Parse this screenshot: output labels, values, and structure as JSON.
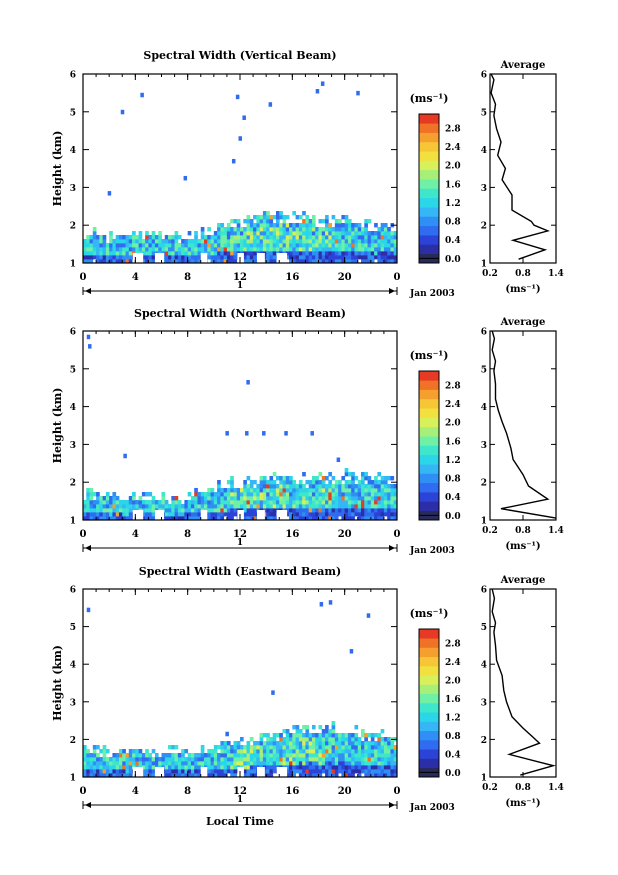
{
  "figure": {
    "date_label": "Jan 2003",
    "day_label": "1",
    "x_axis_title": "Local Time"
  },
  "colorbar": {
    "unit_label": "(ms⁻¹)",
    "ticks": [
      "2.8",
      "2.4",
      "2.0",
      "1.6",
      "1.2",
      "0.8",
      "0.4",
      "0.0"
    ],
    "colors": [
      "#282a5a",
      "#2c2ea8",
      "#2b43d6",
      "#2f6cf0",
      "#2f8ff5",
      "#35b7f5",
      "#2ad6e8",
      "#3ee6cc",
      "#6ef0a6",
      "#a6f07a",
      "#d8f05a",
      "#f2e040",
      "#f6c636",
      "#f5a02e",
      "#f07226",
      "#e63a24"
    ]
  },
  "chart_data": [
    {
      "type": "heatmap",
      "title": "Spectral Width (Vertical Beam)",
      "xlabel": "",
      "ylabel": "Height (km)",
      "xlim": [
        0,
        24
      ],
      "ylim": [
        1,
        6
      ],
      "xticks": [
        "0",
        "4",
        "8",
        "12",
        "16",
        "20",
        "0"
      ],
      "yticks": [
        "1",
        "2",
        "3",
        "4",
        "5",
        "6"
      ],
      "layer_top_km": [
        1.85,
        1.85,
        1.8,
        1.8,
        1.85,
        1.8,
        1.8,
        1.75,
        1.8,
        1.9,
        2.05,
        2.2,
        2.25,
        2.3,
        2.35,
        2.35,
        2.3,
        2.3,
        2.25,
        2.25,
        2.3,
        2.2,
        2.1,
        2.1,
        2.05
      ],
      "isolated_echoes": [
        [
          3.0,
          5.0
        ],
        [
          4.5,
          5.45
        ],
        [
          7.8,
          3.25
        ],
        [
          11.5,
          3.7
        ],
        [
          12.0,
          4.3
        ],
        [
          12.3,
          4.85
        ],
        [
          11.8,
          5.4
        ],
        [
          14.3,
          5.2
        ],
        [
          17.9,
          5.55
        ],
        [
          18.3,
          5.75
        ],
        [
          21.0,
          5.5
        ],
        [
          2.0,
          2.85
        ]
      ],
      "colorbar": [
        "0.0",
        "0.4",
        "0.8",
        "1.2",
        "1.6",
        "2.0",
        "2.4",
        "2.8"
      ],
      "average": {
        "title": "Average",
        "xlabel": "(ms⁻¹)",
        "xlim": [
          0.2,
          1.4
        ],
        "ylim": [
          1,
          6
        ],
        "xticks": [
          "0.2",
          "0.8",
          "1.4"
        ],
        "yticks": [
          "1",
          "2",
          "3",
          "4",
          "5",
          "6"
        ],
        "profile": [
          [
            0.72,
            1.1
          ],
          [
            1.2,
            1.35
          ],
          [
            0.62,
            1.6
          ],
          [
            1.25,
            1.85
          ],
          [
            1.0,
            2.0
          ],
          [
            0.95,
            2.1
          ],
          [
            0.6,
            2.4
          ],
          [
            0.6,
            2.8
          ],
          [
            0.42,
            3.2
          ],
          [
            0.48,
            3.5
          ],
          [
            0.34,
            3.85
          ],
          [
            0.4,
            4.2
          ],
          [
            0.32,
            4.55
          ],
          [
            0.27,
            4.9
          ],
          [
            0.3,
            5.2
          ],
          [
            0.22,
            5.5
          ],
          [
            0.27,
            5.85
          ],
          [
            0.22,
            6.0
          ]
        ]
      }
    },
    {
      "type": "heatmap",
      "title": "Spectral Width (Northward Beam)",
      "xlabel": "",
      "ylabel": "Height (km)",
      "xlim": [
        0,
        24
      ],
      "ylim": [
        1,
        6
      ],
      "xticks": [
        "0",
        "4",
        "8",
        "12",
        "16",
        "20",
        "0"
      ],
      "yticks": [
        "1",
        "2",
        "3",
        "4",
        "5",
        "6"
      ],
      "layer_top_km": [
        1.75,
        1.75,
        1.7,
        1.7,
        1.75,
        1.7,
        1.7,
        1.65,
        1.7,
        1.8,
        1.95,
        2.05,
        2.1,
        2.15,
        2.2,
        2.2,
        2.15,
        2.15,
        2.2,
        2.25,
        2.3,
        2.25,
        2.2,
        2.2,
        2.15
      ],
      "isolated_echoes": [
        [
          0.4,
          5.85
        ],
        [
          0.5,
          5.6
        ],
        [
          12.6,
          4.65
        ],
        [
          11.0,
          3.3
        ],
        [
          12.5,
          3.3
        ],
        [
          13.8,
          3.3
        ],
        [
          15.5,
          3.3
        ],
        [
          17.5,
          3.3
        ],
        [
          19.5,
          2.6
        ],
        [
          3.2,
          2.7
        ]
      ],
      "colorbar": [
        "0.0",
        "0.4",
        "0.8",
        "1.2",
        "1.6",
        "2.0",
        "2.4",
        "2.8"
      ],
      "average": {
        "title": "Average",
        "xlabel": "(ms⁻¹)",
        "xlim": [
          0.2,
          1.4
        ],
        "ylim": [
          1,
          6
        ],
        "xticks": [
          "0.2",
          "0.8",
          "1.4"
        ],
        "yticks": [
          "1",
          "2",
          "3",
          "4",
          "5",
          "6"
        ],
        "profile": [
          [
            1.4,
            1.05
          ],
          [
            0.4,
            1.3
          ],
          [
            1.25,
            1.55
          ],
          [
            0.9,
            1.9
          ],
          [
            0.8,
            2.2
          ],
          [
            0.62,
            2.6
          ],
          [
            0.58,
            2.9
          ],
          [
            0.5,
            3.3
          ],
          [
            0.42,
            3.6
          ],
          [
            0.35,
            3.9
          ],
          [
            0.3,
            4.2
          ],
          [
            0.3,
            4.6
          ],
          [
            0.27,
            4.95
          ],
          [
            0.3,
            5.2
          ],
          [
            0.24,
            5.5
          ],
          [
            0.28,
            5.8
          ],
          [
            0.24,
            6.0
          ]
        ]
      }
    },
    {
      "type": "heatmap",
      "title": "Spectral Width (Eastward Beam)",
      "xlabel": "Local Time",
      "ylabel": "Height (km)",
      "xlim": [
        0,
        24
      ],
      "ylim": [
        1,
        6
      ],
      "xticks": [
        "0",
        "4",
        "8",
        "12",
        "16",
        "20",
        "0"
      ],
      "yticks": [
        "1",
        "2",
        "3",
        "4",
        "5",
        "6"
      ],
      "layer_top_km": [
        1.8,
        1.8,
        1.75,
        1.75,
        1.75,
        1.75,
        1.8,
        1.8,
        1.75,
        1.8,
        1.85,
        1.9,
        2.0,
        2.1,
        2.2,
        2.3,
        2.35,
        2.4,
        2.45,
        2.5,
        2.4,
        2.3,
        2.2,
        2.2,
        2.1
      ],
      "isolated_echoes": [
        [
          0.4,
          5.45
        ],
        [
          14.5,
          3.25
        ],
        [
          18.2,
          5.6
        ],
        [
          18.9,
          5.65
        ],
        [
          20.5,
          4.35
        ],
        [
          21.8,
          5.3
        ],
        [
          11.0,
          2.15
        ]
      ],
      "colorbar": [
        "0.0",
        "0.4",
        "0.8",
        "1.2",
        "1.6",
        "2.0",
        "2.4",
        "2.8"
      ],
      "average": {
        "title": "Average",
        "xlabel": "(ms⁻¹)",
        "xlim": [
          0.2,
          1.4
        ],
        "ylim": [
          1,
          6
        ],
        "xticks": [
          "0.2",
          "0.8",
          "1.4"
        ],
        "yticks": [
          "1",
          "2",
          "3",
          "4",
          "5",
          "6"
        ],
        "profile": [
          [
            0.75,
            1.05
          ],
          [
            1.35,
            1.3
          ],
          [
            0.55,
            1.6
          ],
          [
            1.1,
            1.9
          ],
          [
            0.95,
            2.1
          ],
          [
            0.8,
            2.3
          ],
          [
            0.6,
            2.6
          ],
          [
            0.5,
            3.0
          ],
          [
            0.45,
            3.3
          ],
          [
            0.42,
            3.7
          ],
          [
            0.32,
            4.1
          ],
          [
            0.3,
            4.5
          ],
          [
            0.27,
            4.85
          ],
          [
            0.3,
            5.1
          ],
          [
            0.24,
            5.4
          ],
          [
            0.28,
            5.75
          ],
          [
            0.24,
            6.0
          ]
        ]
      }
    }
  ]
}
